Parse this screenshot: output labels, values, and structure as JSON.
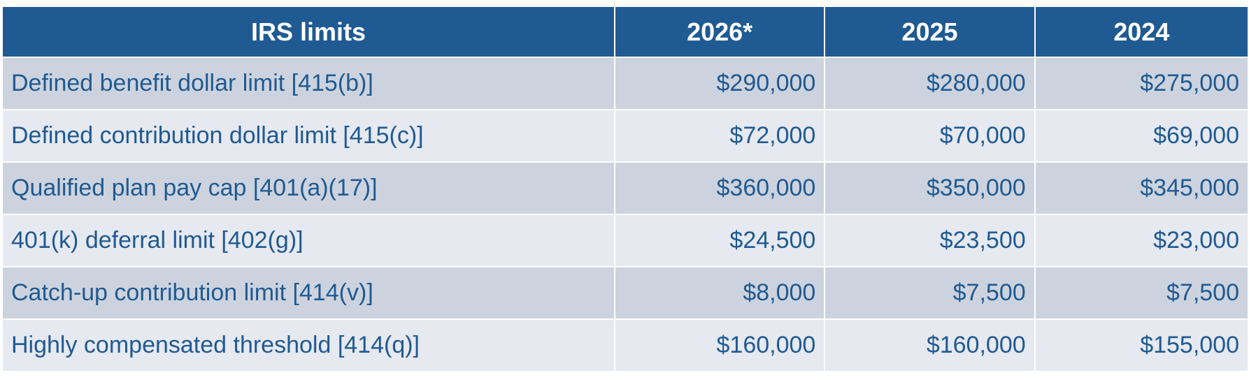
{
  "table": {
    "header": [
      "IRS limits",
      "2026*",
      "2025",
      "2024"
    ],
    "rows": [
      [
        "Defined benefit dollar limit [415(b)]",
        "$290,000",
        "$280,000",
        "$275,000"
      ],
      [
        "Defined contribution dollar limit [415(c)]",
        "$72,000",
        "$70,000",
        "$69,000"
      ],
      [
        "Qualified plan pay cap [401(a)(17)]",
        "$360,000",
        "$350,000",
        "$345,000"
      ],
      [
        "401(k) deferral limit [402(g)]",
        "$24,500",
        "$23,500",
        "$23,000"
      ],
      [
        "Catch-up contribution limit [414(v)]",
        "$8,000",
        "$7,500",
        "$7,500"
      ],
      [
        "Highly compensated threshold [414(q)]",
        "$160,000",
        "$160,000",
        "$155,000"
      ]
    ]
  }
}
